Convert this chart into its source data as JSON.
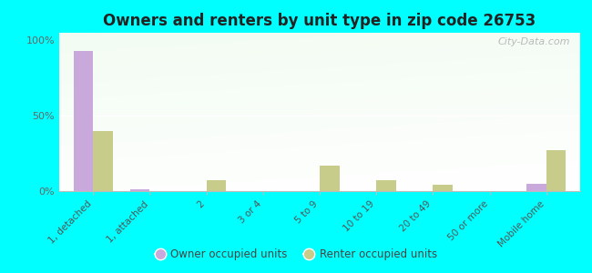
{
  "title": "Owners and renters by unit type in zip code 26753",
  "categories": [
    "1, detached",
    "1, attached",
    "2",
    "3 or 4",
    "5 to 9",
    "10 to 19",
    "20 to 49",
    "50 or more",
    "Mobile home"
  ],
  "owner_values": [
    93,
    1,
    0,
    0,
    0,
    0,
    0,
    0,
    5
  ],
  "renter_values": [
    40,
    0,
    7,
    0,
    17,
    7,
    4,
    0,
    27
  ],
  "owner_color": "#c9a8dc",
  "renter_color": "#c8cc8a",
  "background_color": "#00ffff",
  "ylabel_ticks": [
    "0%",
    "50%",
    "100%"
  ],
  "ytick_vals": [
    0,
    50,
    100
  ],
  "ylim": [
    0,
    105
  ],
  "bar_width": 0.35,
  "legend_owner": "Owner occupied units",
  "legend_renter": "Renter occupied units",
  "watermark": "City-Data.com"
}
